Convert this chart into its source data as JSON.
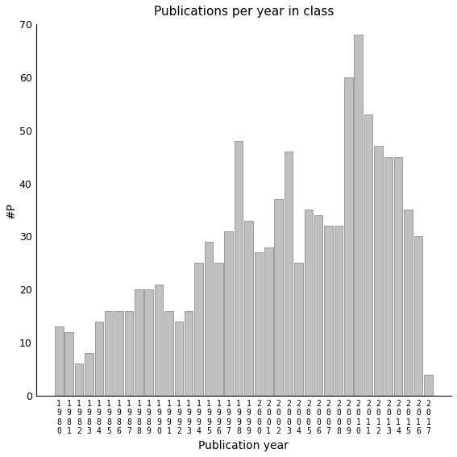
{
  "title": "Publications per year in class",
  "xlabel": "Publication year",
  "ylabel": "#P",
  "bar_color": "#c0c0c0",
  "edge_color": "#808080",
  "years": [
    1980,
    1981,
    1982,
    1983,
    1984,
    1985,
    1986,
    1987,
    1988,
    1989,
    1990,
    1991,
    1992,
    1993,
    1994,
    1995,
    1996,
    1997,
    1998,
    1999,
    2000,
    2001,
    2002,
    2003,
    2004,
    2005,
    2006,
    2007,
    2008,
    2009,
    2010,
    2011,
    2012,
    2013,
    2014,
    2015,
    2016,
    2017
  ],
  "values": [
    13,
    12,
    6,
    8,
    14,
    16,
    16,
    16,
    20,
    20,
    21,
    16,
    14,
    16,
    25,
    29,
    25,
    31,
    48,
    33,
    27,
    28,
    37,
    46,
    25,
    35,
    34,
    32,
    32,
    60,
    68,
    53,
    47,
    45,
    45,
    35,
    30,
    4
  ],
  "ylim": [
    0,
    70
  ],
  "yticks": [
    0,
    10,
    20,
    30,
    40,
    50,
    60,
    70
  ],
  "background_color": "#ffffff"
}
